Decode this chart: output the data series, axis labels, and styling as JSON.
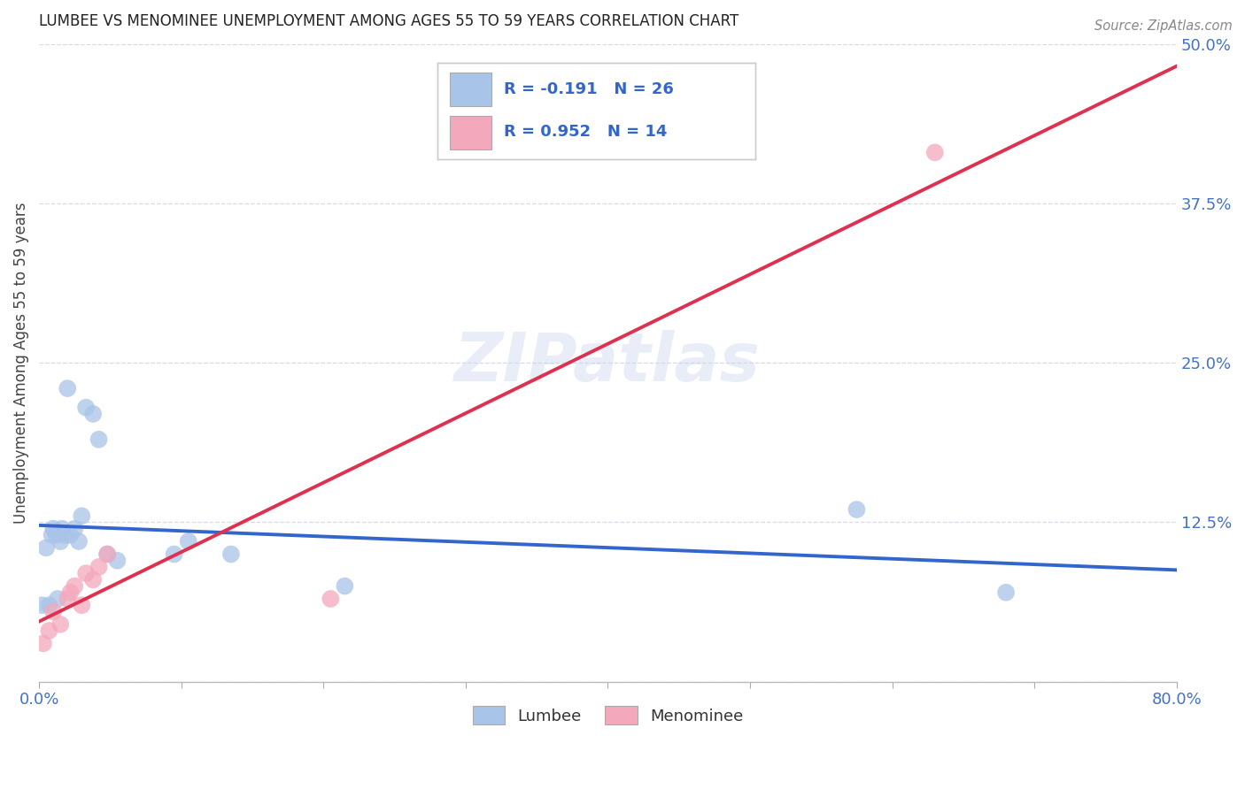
{
  "title": "LUMBEE VS MENOMINEE UNEMPLOYMENT AMONG AGES 55 TO 59 YEARS CORRELATION CHART",
  "source": "Source: ZipAtlas.com",
  "ylabel": "Unemployment Among Ages 55 to 59 years",
  "xlim": [
    0.0,
    0.8
  ],
  "ylim": [
    0.0,
    0.5
  ],
  "xticks": [
    0.0,
    0.1,
    0.2,
    0.3,
    0.4,
    0.5,
    0.6,
    0.7,
    0.8
  ],
  "xticklabels": [
    "0.0%",
    "",
    "",
    "",
    "",
    "",
    "",
    "",
    "80.0%"
  ],
  "yticks": [
    0.0,
    0.125,
    0.25,
    0.375,
    0.5
  ],
  "yticklabels": [
    "",
    "12.5%",
    "25.0%",
    "37.5%",
    "50.0%"
  ],
  "lumbee_color": "#a8c4e8",
  "menominee_color": "#f4a8bc",
  "lumbee_line_color": "#3366cc",
  "menominee_line_color": "#e03050",
  "R_lumbee": -0.191,
  "N_lumbee": 26,
  "R_menominee": 0.952,
  "N_menominee": 14,
  "lumbee_x": [
    0.002,
    0.005,
    0.007,
    0.009,
    0.01,
    0.012,
    0.013,
    0.015,
    0.016,
    0.018,
    0.02,
    0.022,
    0.025,
    0.028,
    0.03,
    0.033,
    0.038,
    0.042,
    0.048,
    0.055,
    0.095,
    0.105,
    0.135,
    0.215,
    0.575,
    0.68
  ],
  "lumbee_y": [
    0.06,
    0.105,
    0.06,
    0.115,
    0.12,
    0.115,
    0.065,
    0.11,
    0.12,
    0.115,
    0.23,
    0.115,
    0.12,
    0.11,
    0.13,
    0.215,
    0.21,
    0.19,
    0.1,
    0.095,
    0.1,
    0.11,
    0.1,
    0.075,
    0.135,
    0.07
  ],
  "menominee_x": [
    0.003,
    0.007,
    0.01,
    0.015,
    0.02,
    0.022,
    0.025,
    0.03,
    0.033,
    0.038,
    0.042,
    0.048,
    0.205,
    0.63
  ],
  "menominee_y": [
    0.03,
    0.04,
    0.055,
    0.045,
    0.065,
    0.07,
    0.075,
    0.06,
    0.085,
    0.08,
    0.09,
    0.1,
    0.065,
    0.415
  ],
  "watermark": "ZIPatlas",
  "legend_labels": [
    "Lumbee",
    "Menominee"
  ],
  "background_color": "#ffffff",
  "grid_color": "#d8d8e8",
  "tick_label_color": "#4472c4",
  "title_color": "#222222",
  "source_color": "#888888",
  "ylabel_color": "#444444"
}
